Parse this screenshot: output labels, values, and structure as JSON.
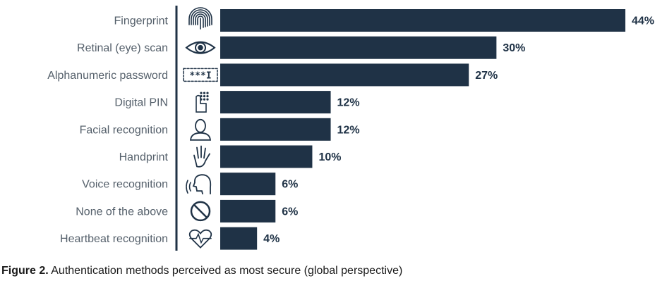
{
  "chart_data": {
    "type": "bar",
    "orientation": "horizontal",
    "categories": [
      "Fingerprint",
      "Retinal (eye) scan",
      "Alphanumeric password",
      "Digital PIN",
      "Facial recognition",
      "Handprint",
      "Voice recognition",
      "None of the above",
      "Heartbeat recognition"
    ],
    "values": [
      44,
      30,
      27,
      12,
      12,
      10,
      6,
      6,
      4
    ],
    "value_labels": [
      "44%",
      "30%",
      "27%",
      "12%",
      "12%",
      "10%",
      "6%",
      "6%",
      "4%"
    ],
    "icons": [
      "fingerprint-icon",
      "eye-icon",
      "password-field-icon",
      "keypad-hand-icon",
      "face-person-icon",
      "hand-icon",
      "voice-speaking-icon",
      "prohibited-icon",
      "heartbeat-icon"
    ],
    "xlim": [
      0,
      44
    ],
    "grid": false,
    "bar_color": "#1f3246"
  },
  "caption": {
    "label": "Figure 2.",
    "text": " Authentication methods perceived as most secure (global perspective)"
  }
}
